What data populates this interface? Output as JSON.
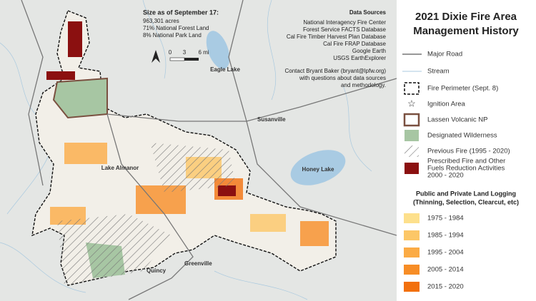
{
  "map": {
    "size_note": {
      "title": "Size as of September 17:",
      "lines": [
        "963,301 acres",
        "71% National Forest Land",
        "8% National Park Land"
      ]
    },
    "scale": [
      "0",
      "3",
      "6 mi"
    ],
    "sources": {
      "title": "Data Sources",
      "lines": [
        "National Interagency Fire Center",
        "Forest Service FACTS Database",
        "Cal Fire Timber Harvest Plan Database",
        "Cal Fire FRAP Database",
        "Google Earth",
        "USGS EarthExplorer"
      ],
      "contact": [
        "Contact Bryant Baker (bryant@lpfw.org)",
        "with questions about data sources",
        "and methodology."
      ]
    },
    "places": [
      "Eagle Lake",
      "Susanville",
      "Lake Almanor",
      "Honey Lake",
      "Greenville",
      "Quincy"
    ]
  },
  "legend": {
    "title": [
      "2021 Dixie Fire Area",
      "Management History"
    ],
    "items": [
      {
        "label": [
          "Major Road"
        ]
      },
      {
        "label": [
          "Stream"
        ]
      },
      {
        "label": [
          "Fire Perimeter (Sept. 8)"
        ]
      },
      {
        "label": [
          "Ignition Area"
        ]
      },
      {
        "label": [
          "Lassen Volcanic NP"
        ]
      },
      {
        "label": [
          "Designated Wilderness"
        ]
      },
      {
        "label": [
          "Previous Fire (1995 - 2020)"
        ]
      },
      {
        "label": [
          "Prescribed Fire and Other",
          "Fuels Reduction Activities",
          "2000 - 2020"
        ]
      }
    ],
    "logging": {
      "title": [
        "Public and Private Land Logging",
        "(Thinning, Selection, Clearcut, etc)"
      ],
      "periods": [
        {
          "label": "1975 - 1984",
          "color": "#fde08c"
        },
        {
          "label": "1985 - 1994",
          "color": "#fcc767"
        },
        {
          "label": "1995 - 2004",
          "color": "#fbab45"
        },
        {
          "label": "2005 - 2014",
          "color": "#f78d26"
        },
        {
          "label": "2015 - 2020",
          "color": "#f2700d"
        }
      ]
    }
  }
}
